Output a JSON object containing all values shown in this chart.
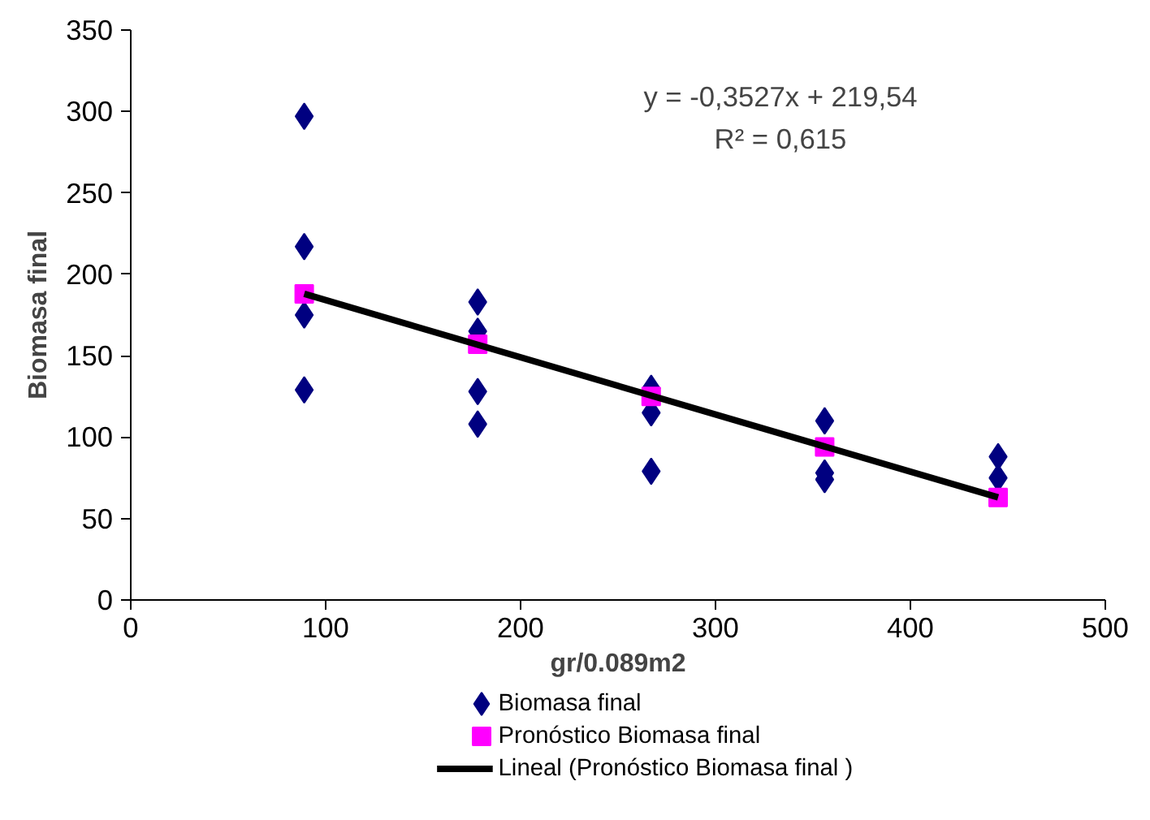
{
  "chart_data": {
    "type": "scatter",
    "xlabel": "gr/0.089m2",
    "ylabel": "Biomasa final",
    "xlim": [
      0,
      500
    ],
    "xticks": [
      0,
      100,
      200,
      300,
      400,
      500
    ],
    "ylim": [
      0,
      350
    ],
    "yticks": [
      0,
      50,
      100,
      150,
      200,
      250,
      300,
      350
    ],
    "grid": false,
    "legend": "bottom",
    "series": [
      {
        "name": "Biomasa  final",
        "marker": "diamond",
        "color": "#000080",
        "x": [
          89,
          89,
          89,
          89,
          178,
          178,
          178,
          178,
          267,
          267,
          267,
          356,
          356,
          356,
          445,
          445
        ],
        "values": [
          297,
          217,
          175,
          129,
          183,
          165,
          128,
          108,
          130,
          115,
          79,
          110,
          78,
          74,
          88,
          75
        ]
      },
      {
        "name": "Pronóstico Biomasa  final",
        "marker": "square",
        "color": "#ff00ff",
        "x": [
          89,
          178,
          267,
          356,
          445
        ],
        "values": [
          188,
          157,
          125,
          94,
          63
        ]
      },
      {
        "name": "Lineal (Pronóstico Biomasa  final )",
        "type": "line",
        "marker": "none",
        "line_style": "solid",
        "color": "#000000",
        "x": [
          89,
          445
        ],
        "values": [
          188,
          63
        ]
      }
    ],
    "annotations": [
      "y = -0,3527x + 219,54",
      "R² = 0,615"
    ]
  }
}
